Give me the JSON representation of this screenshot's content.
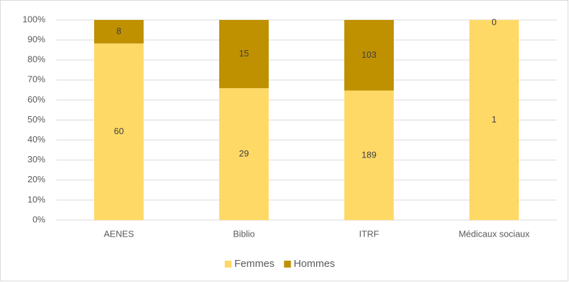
{
  "chart_data": {
    "type": "bar",
    "stack": "percent",
    "categories": [
      "AENES",
      "Biblio",
      "ITRF",
      "Médicaux sociaux"
    ],
    "series": [
      {
        "name": "Femmes",
        "color": "#ffd966",
        "values": [
          60,
          29,
          189,
          1
        ]
      },
      {
        "name": "Hommes",
        "color": "#bf9000",
        "values": [
          8,
          15,
          103,
          0
        ]
      }
    ],
    "ylim": [
      0,
      100
    ],
    "yticks": [
      {
        "value": 0,
        "label": "0%"
      },
      {
        "value": 10,
        "label": "10%"
      },
      {
        "value": 20,
        "label": "20%"
      },
      {
        "value": 30,
        "label": "30%"
      },
      {
        "value": 40,
        "label": "40%"
      },
      {
        "value": 50,
        "label": "50%"
      },
      {
        "value": 60,
        "label": "60%"
      },
      {
        "value": 70,
        "label": "70%"
      },
      {
        "value": 80,
        "label": "80%"
      },
      {
        "value": 90,
        "label": "90%"
      },
      {
        "value": 100,
        "label": "100%"
      }
    ],
    "grid": true,
    "legend": "bottom"
  }
}
